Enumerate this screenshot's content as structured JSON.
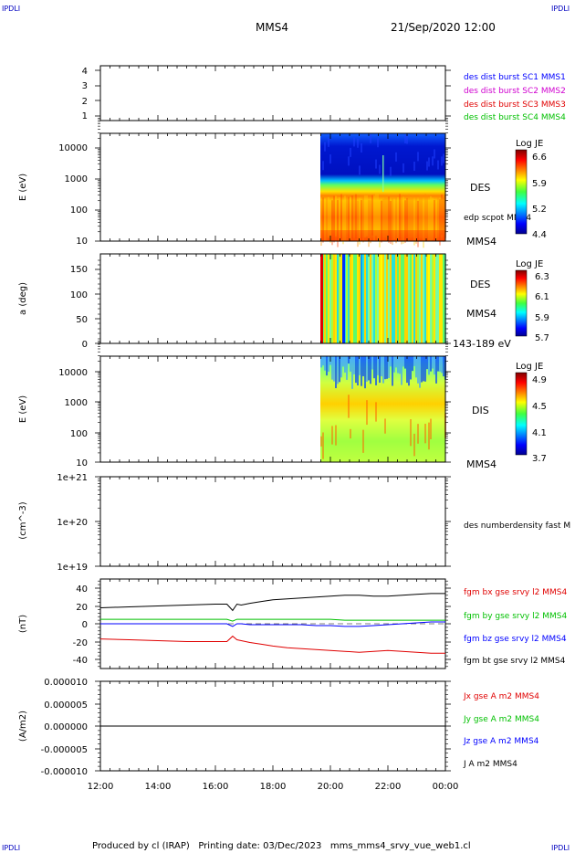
{
  "header": {
    "corner_tl": "IPDLI",
    "corner_tr": "IPDLI",
    "corner_bl": "IPDLI",
    "corner_br": "IPDLI",
    "spacecraft": "MMS4",
    "datetime": "21/Sep/2020 12:00"
  },
  "footer": {
    "text": "Produced by cl (IRAP)   Printing date: 03/Dec/2023   mms_mms4_srvy_vue_web1.cl"
  },
  "colors": {
    "blue": "#0000ff",
    "magenta": "#d000d0",
    "red": "#e00000",
    "green": "#00c000",
    "black": "#000000"
  },
  "time_axis": {
    "start": "12:00",
    "end": "00:00",
    "tick_labels": [
      "12:00",
      "14:00",
      "16:00",
      "18:00",
      "20:00",
      "22:00",
      "00:00"
    ],
    "data_start_hour": 19.7
  },
  "panels": {
    "burst": {
      "tick_labels": [
        "4",
        "3",
        "2",
        "1"
      ],
      "labels": [
        {
          "text": "des dist burst SC1 MMS1",
          "color": "#0000ff"
        },
        {
          "text": "des dist burst SC2 MMS2",
          "color": "#d000d0"
        },
        {
          "text": "des dist burst SC3 MMS3",
          "color": "#e00000"
        },
        {
          "text": "des dist burst SC4 MMS4",
          "color": "#00c000"
        }
      ]
    },
    "des_energy": {
      "ylabel": "E (eV)",
      "tick_labels": [
        "10000",
        "1000",
        "100",
        "10"
      ],
      "right_label": "DES",
      "right_label2": "edp scpot MMS4",
      "bottom_label": "MMS4",
      "colorbar_title": "Log JE",
      "colorbar_ticks": [
        "6.6",
        "5.9",
        "5.2",
        "4.4"
      ]
    },
    "des_pitch": {
      "ylabel": "a (deg)",
      "tick_labels": [
        "150",
        "100",
        "50",
        "0"
      ],
      "right_label": "DES",
      "right_label2": "MMS4",
      "bottom_label": "143-189 eV",
      "colorbar_title": "Log JE",
      "colorbar_ticks": [
        "6.3",
        "6.1",
        "5.9",
        "5.7"
      ]
    },
    "dis_energy": {
      "ylabel": "E (eV)",
      "tick_labels": [
        "10000",
        "1000",
        "100",
        "10"
      ],
      "right_label": "DIS",
      "bottom_label": "MMS4",
      "colorbar_title": "Log JE",
      "colorbar_ticks": [
        "4.9",
        "4.5",
        "4.1",
        "3.7"
      ]
    },
    "density": {
      "ylabel": "(cm^-3)",
      "tick_labels": [
        "1e+21",
        "1e+20",
        "1e+19"
      ],
      "right_label": "des numberdensity fast M"
    },
    "fgm": {
      "ylabel": "(nT)",
      "tick_labels": [
        "40",
        "20",
        "0",
        "-20",
        "-40"
      ],
      "labels": [
        {
          "text": "fgm bx gse srvy l2 MMS4",
          "color": "#e00000"
        },
        {
          "text": "fgm by gse srvy l2 MMS4",
          "color": "#00c000"
        },
        {
          "text": "fgm bz gse srvy l2 MMS4",
          "color": "#0000ff"
        },
        {
          "text": "fgm bt gse srvy l2 MMS4",
          "color": "#000000"
        }
      ]
    },
    "current": {
      "ylabel": "(A/m2)",
      "tick_labels": [
        "0.000010",
        "0.000005",
        "0.000000",
        "-0.000005",
        "-0.000010"
      ],
      "labels": [
        {
          "text": "Jx gse A m2 MMS4",
          "color": "#e00000"
        },
        {
          "text": "Jy gse A m2 MMS4",
          "color": "#00c000"
        },
        {
          "text": "Jz gse A m2 MMS4",
          "color": "#0000ff"
        },
        {
          "text": "J A m2 MMS4",
          "color": "#000000"
        }
      ]
    }
  },
  "chart_data": {
    "type": "line",
    "x_unit": "hour (UT)",
    "xlim": [
      "12:00",
      "00:00"
    ],
    "fgm": {
      "ylim": [
        -50,
        50
      ],
      "x": [
        12.0,
        13.0,
        14.0,
        15.0,
        16.0,
        16.4,
        16.6,
        16.75,
        16.9,
        17.2,
        17.6,
        18.0,
        18.5,
        19.0,
        19.5,
        20.0,
        20.5,
        21.0,
        21.5,
        22.0,
        22.5,
        23.0,
        23.5,
        24.0
      ],
      "series": [
        {
          "name": "fgm bx gse srvy l2 MMS4",
          "color": "#e00000",
          "values": [
            -17,
            -18,
            -19,
            -20,
            -20,
            -20,
            -14,
            -18,
            -19,
            -21,
            -23,
            -25,
            -27,
            -28,
            -29,
            -30,
            -31,
            -32,
            -31,
            -30,
            -31,
            -32,
            -33,
            -33
          ]
        },
        {
          "name": "fgm by gse srvy l2 MMS4",
          "color": "#00c000",
          "values": [
            5,
            5,
            5,
            5,
            5,
            5,
            3,
            5,
            5,
            5,
            5,
            5,
            5,
            5,
            5,
            5,
            4,
            4,
            4,
            4,
            4,
            4,
            4,
            4
          ]
        },
        {
          "name": "fgm bz gse srvy l2 MMS4",
          "color": "#0000ff",
          "values": [
            0,
            0,
            0,
            0,
            0,
            0,
            -3,
            0,
            0,
            -1,
            -1,
            -1,
            -1,
            -1,
            -2,
            -2,
            -3,
            -3,
            -2,
            -1,
            0,
            1,
            2,
            2
          ]
        },
        {
          "name": "fgm bt gse srvy l2 MMS4",
          "color": "#000000",
          "values": [
            18,
            19,
            20,
            21,
            22,
            22,
            15,
            22,
            21,
            23,
            25,
            27,
            28,
            29,
            30,
            31,
            32,
            32,
            31,
            31,
            32,
            33,
            34,
            34
          ]
        }
      ]
    },
    "current": {
      "ylim": [
        -1e-05,
        1e-05
      ],
      "x": [
        12.0,
        24.0
      ],
      "series": [
        {
          "name": "J A m2 MMS4",
          "color": "#000000",
          "values": [
            0.0,
            0.0
          ]
        }
      ]
    },
    "density": {
      "ylim": [
        1e+19,
        1e+21
      ],
      "scale": "log",
      "series": []
    },
    "burst": {
      "ylim": [
        0.5,
        4.5
      ],
      "series": []
    },
    "des_energy": {
      "type": "heatmap",
      "scale": "log",
      "ylim": [
        10,
        30000
      ],
      "data_start_hour": 19.7,
      "color_range": [
        4.4,
        6.6
      ]
    },
    "des_pitch": {
      "type": "heatmap",
      "ylim": [
        0,
        180
      ],
      "data_start_hour": 19.7,
      "color_range": [
        5.7,
        6.3
      ]
    },
    "dis_energy": {
      "type": "heatmap",
      "scale": "log",
      "ylim": [
        10,
        30000
      ],
      "data_start_hour": 19.7,
      "color_range": [
        3.7,
        4.9
      ]
    }
  }
}
